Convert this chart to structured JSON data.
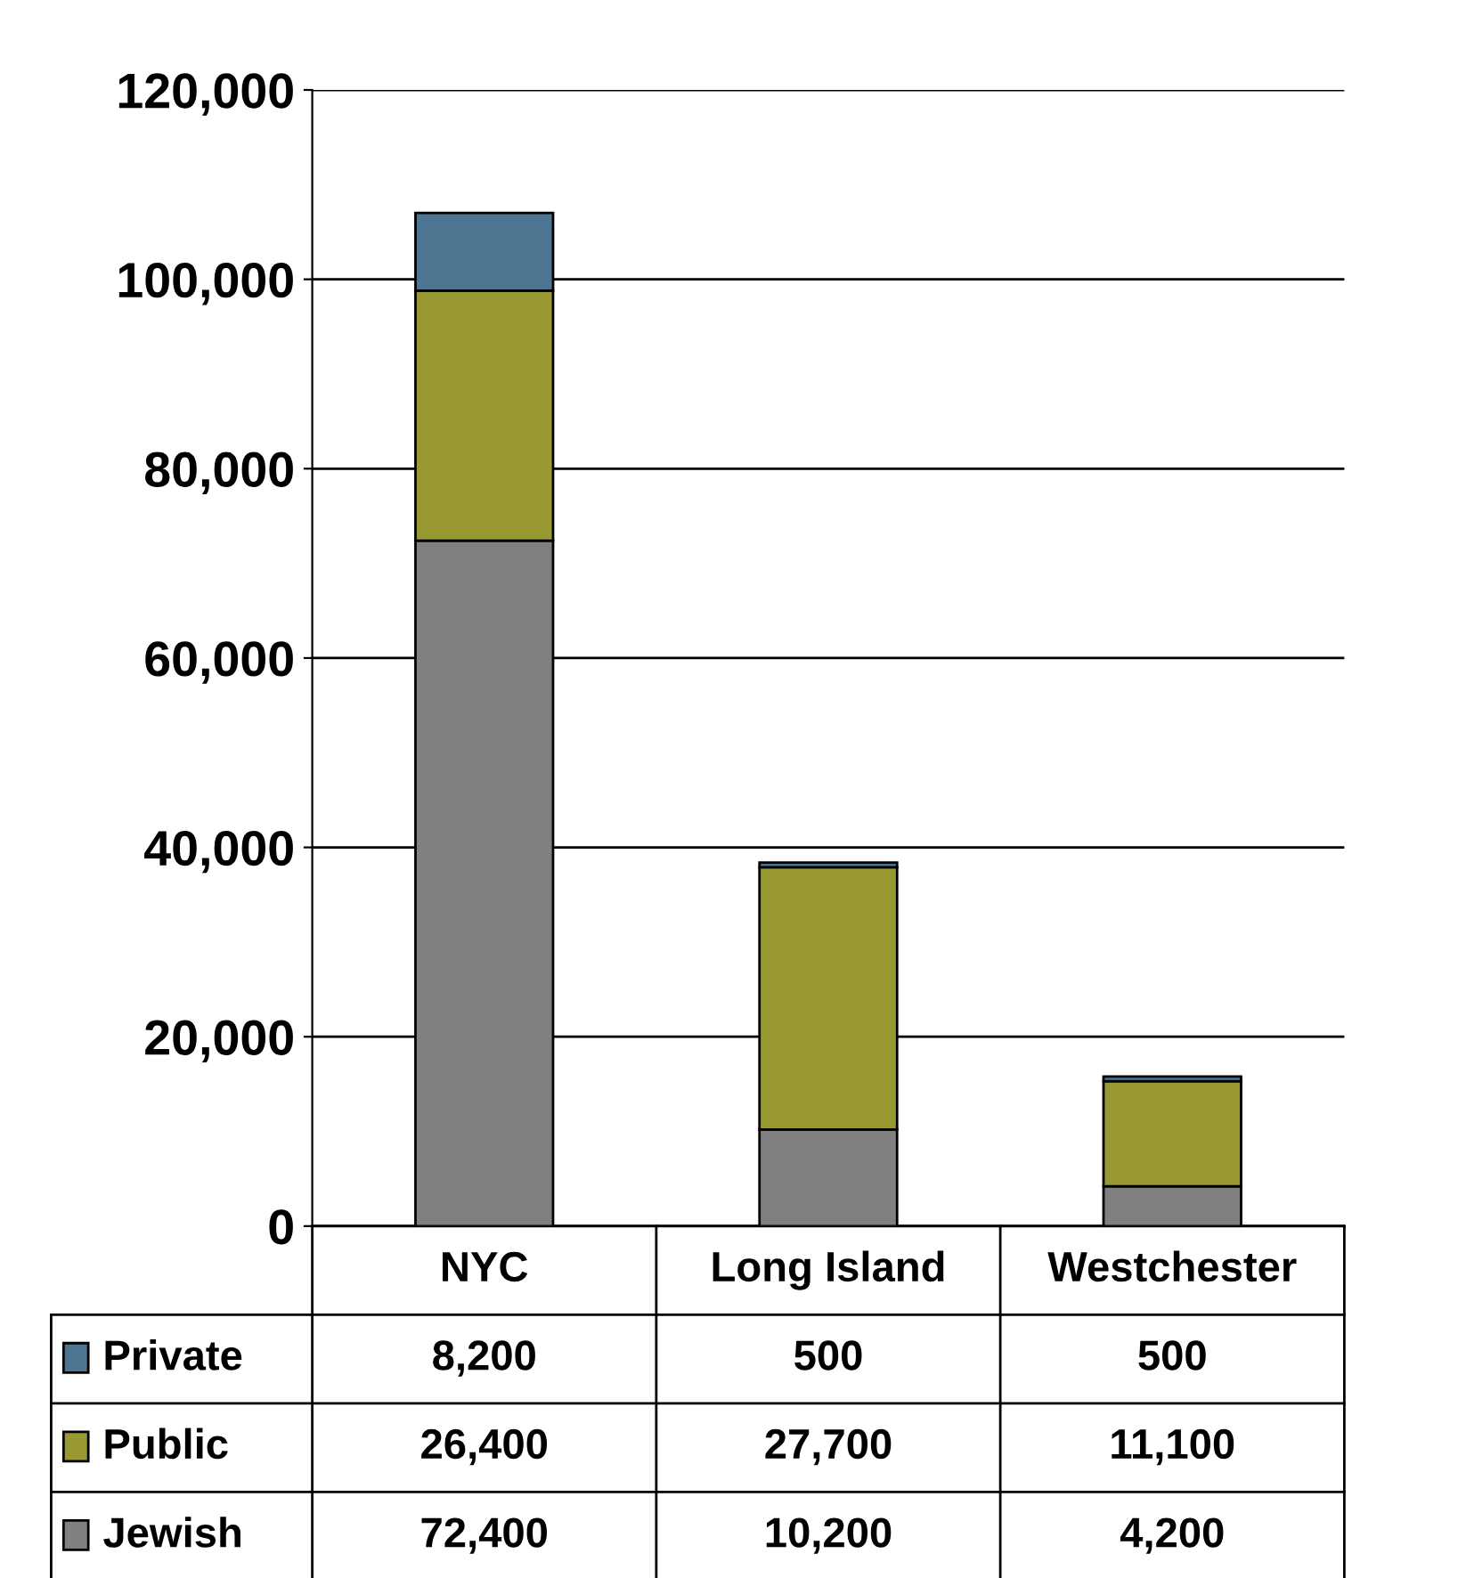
{
  "chart_data": {
    "type": "bar",
    "stacked": true,
    "categories": [
      "NYC",
      "Long Island",
      "Westchester"
    ],
    "series": [
      {
        "name": "Jewish",
        "color": "#808080",
        "values": [
          72400,
          10200,
          4200
        ],
        "value_labels": [
          "72,400",
          "10,200",
          "4,200"
        ]
      },
      {
        "name": "Public",
        "color": "#999933",
        "values": [
          26400,
          27700,
          11100
        ],
        "value_labels": [
          "26,400",
          "27,700",
          "11,100"
        ]
      },
      {
        "name": "Private",
        "color": "#4d7490",
        "values": [
          8200,
          500,
          500
        ],
        "value_labels": [
          "8,200",
          "500",
          "500"
        ]
      }
    ],
    "ylim": [
      0,
      120000
    ],
    "yticks": [
      0,
      {
        "value": 20000,
        "label": "20,000"
      },
      {
        "value": 40000,
        "label": "40,000"
      },
      {
        "value": 60000,
        "label": "60,000"
      },
      {
        "value": 80000,
        "label": "80,000"
      },
      {
        "value": 100000,
        "label": "100,000"
      },
      {
        "value": 120000,
        "label": "120,000"
      }
    ],
    "grid": "y",
    "legend": "bottom left"
  }
}
